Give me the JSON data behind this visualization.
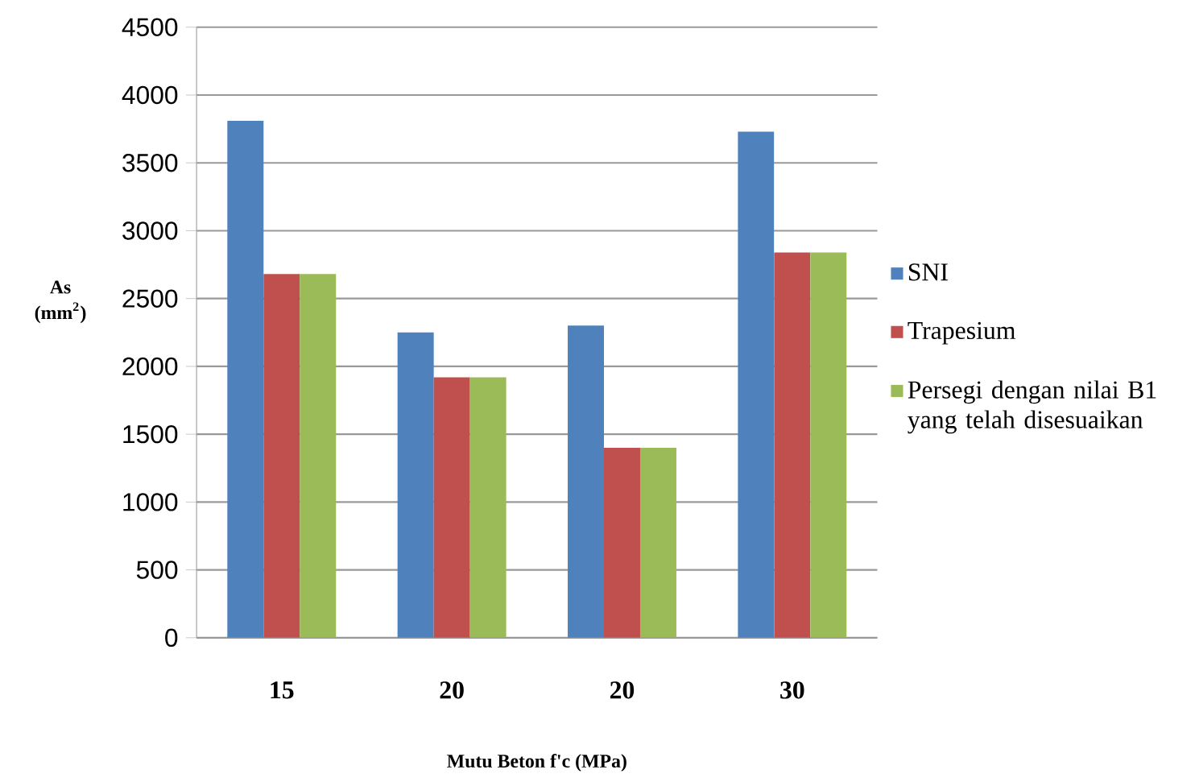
{
  "chart_data": {
    "type": "bar",
    "xlabel": "**Mutu Beton f'c (MPa)**",
    "ylabel": "**As (mm$^{2}$)**",
    "categories": [
      "15",
      "20",
      "20",
      "30"
    ],
    "series": [
      {
        "name": "SNI",
        "color": "#4f81bd",
        "values": [
          3810,
          2250,
          2300,
          3730
        ]
      },
      {
        "name": "Trapesium",
        "color": "#c0504d",
        "values": [
          2680,
          1920,
          1400,
          2840
        ]
      },
      {
        "name": "Persegi dengan nilai B1 yang telah disesuaikan",
        "color": "#9bbb59",
        "values": [
          2680,
          1920,
          1400,
          2840
        ]
      }
    ],
    "ylim": [
      0,
      4500
    ],
    "yticks": [
      0,
      500,
      1000,
      1500,
      2000,
      2500,
      3000,
      3500,
      4000,
      4500
    ],
    "grid": "y",
    "legend": "right"
  }
}
